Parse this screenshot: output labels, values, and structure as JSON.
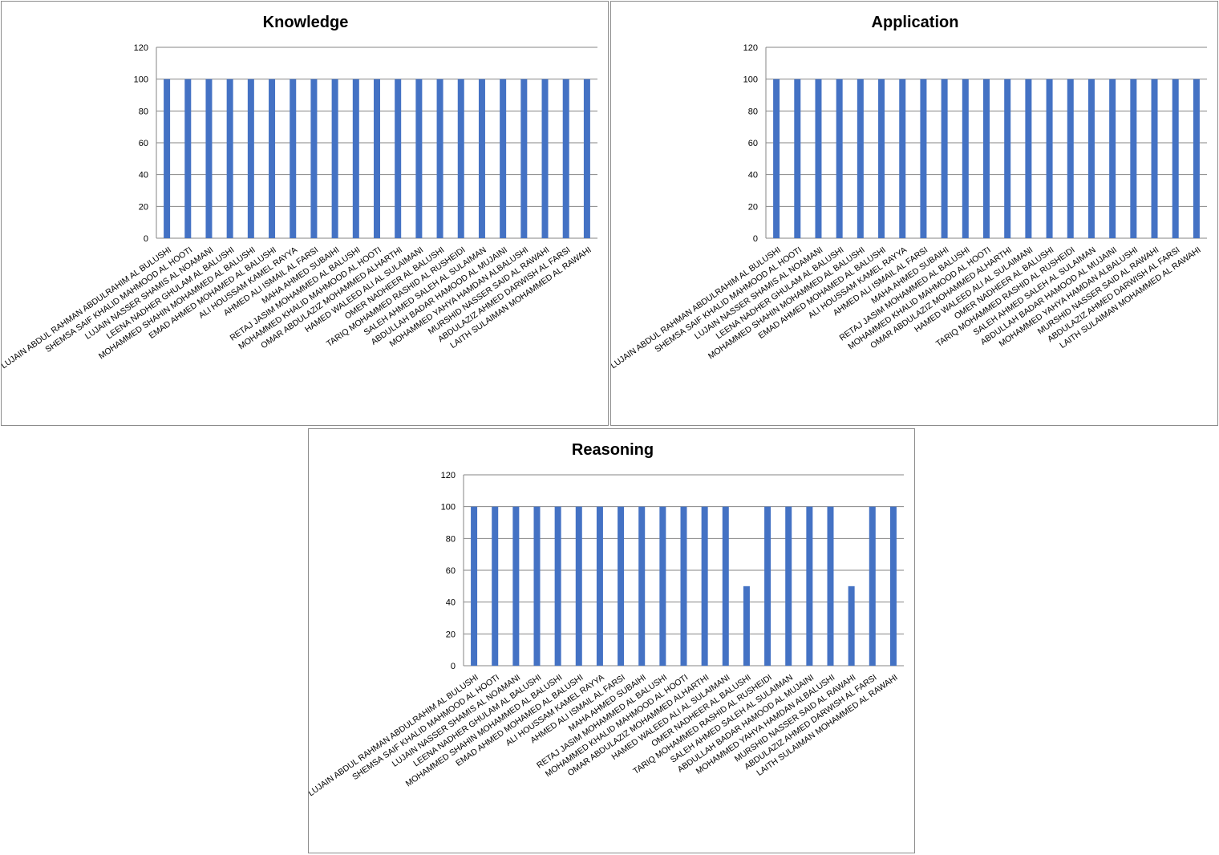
{
  "chart_data": [
    {
      "type": "bar",
      "title": "Knowledge",
      "ylim": [
        0,
        120
      ],
      "yticks": [
        0,
        20,
        40,
        60,
        80,
        100,
        120
      ],
      "grid": true,
      "color": "#4472C4",
      "categories": [
        "LUJAIN ABDUL RAHMAN ABDULRAHIM AL BULUSHI",
        "SHEMSA SAIF KHALID MAHMOOD AL HOOTI",
        "LUJAIN NASSER SHAMIS AL NOAMANI",
        "LEENA NADHER GHULAM AL BALUSHI",
        "MOHAMMED SHAHIN MOHAMMED AL BALUSHI",
        "EMAD AHMED MOHAMED AL BALUSHI",
        "ALI HOUSSAM KAMEL RAYYA",
        "AHMED ALI ISMAIL AL FARSI",
        "MAHA AHMED SUBAIHI",
        "RETAJ JASIM MOHAMMED AL BALUSHI",
        "MOHAMMED KHALID MAHMOOD AL HOOTI",
        "OMAR ABDULAZIZ MOHAMMED ALHARTHI",
        "HAMED WALEED ALI AL SULAIMANI",
        "OMER NADHEER AL BALUSHI",
        "TARIQ MOHAMMED RASHID AL RUSHEIDI",
        "SALEH AHMED SALEH AL SULAIMAN",
        "ABDULLAH BADAR HAMOOD AL MUJAINI",
        "MOHAMMED YAHYA HAMDAN ALBALUSHI",
        "MURSHID NASSER SAID AL RAWAHI",
        "ABDULAZIZ AHMED DARWISH AL FARSI",
        "LAITH SULAIMAN MOHAMMED AL RAWAHI"
      ],
      "values": [
        100,
        100,
        100,
        100,
        100,
        100,
        100,
        100,
        100,
        100,
        100,
        100,
        100,
        100,
        100,
        100,
        100,
        100,
        100,
        100,
        100
      ]
    },
    {
      "type": "bar",
      "title": "Application",
      "ylim": [
        0,
        120
      ],
      "yticks": [
        0,
        20,
        40,
        60,
        80,
        100,
        120
      ],
      "grid": true,
      "color": "#4472C4",
      "categories": [
        "LUJAIN ABDUL RAHMAN ABDULRAHIM AL BULUSHI",
        "SHEMSA SAIF KHALID MAHMOOD AL HOOTI",
        "LUJAIN NASSER SHAMIS AL NOAMANI",
        "LEENA NADHER GHULAM AL BALUSHI",
        "MOHAMMED SHAHIN MOHAMMED AL BALUSHI",
        "EMAD AHMED MOHAMED AL BALUSHI",
        "ALI HOUSSAM KAMEL RAYYA",
        "AHMED ALI ISMAIL AL FARSI",
        "MAHA AHMED SUBAIHI",
        "RETAJ JASIM MOHAMMED AL BALUSHI",
        "MOHAMMED KHALID MAHMOOD AL HOOTI",
        "OMAR ABDULAZIZ MOHAMMED ALHARTHI",
        "HAMED WALEED ALI AL SULAIMANI",
        "OMER NADHEER AL BALUSHI",
        "TARIQ MOHAMMED RASHID AL RUSHEIDI",
        "SALEH AHMED SALEH AL SULAIMAN",
        "ABDULLAH BADAR HAMOOD AL MUJAINI",
        "MOHAMMED YAHYA HAMDAN ALBALUSHI",
        "MURSHID NASSER SAID AL RAWAHI",
        "ABDULAZIZ AHMED DARWISH AL FARSI",
        "LAITH SULAIMAN MOHAMMED AL RAWAHI"
      ],
      "values": [
        100,
        100,
        100,
        100,
        100,
        100,
        100,
        100,
        100,
        100,
        100,
        100,
        100,
        100,
        100,
        100,
        100,
        100,
        100,
        100,
        100
      ]
    },
    {
      "type": "bar",
      "title": "Reasoning",
      "ylim": [
        0,
        120
      ],
      "yticks": [
        0,
        20,
        40,
        60,
        80,
        100,
        120
      ],
      "grid": true,
      "color": "#4472C4",
      "categories": [
        "LUJAIN ABDUL RAHMAN ABDULRAHIM AL BULUSHI",
        "SHEMSA SAIF KHALID MAHMOOD AL HOOTI",
        "LUJAIN NASSER SHAMIS AL NOAMANI",
        "LEENA NADHER GHULAM AL BALUSHI",
        "MOHAMMED SHAHIN MOHAMMED AL BALUSHI",
        "EMAD AHMED MOHAMED AL BALUSHI",
        "ALI HOUSSAM KAMEL RAYYA",
        "AHMED ALI ISMAIL AL FARSI",
        "MAHA AHMED SUBAIHI",
        "RETAJ JASIM MOHAMMED AL BALUSHI",
        "MOHAMMED KHALID MAHMOOD AL HOOTI",
        "OMAR ABDULAZIZ MOHAMMED ALHARTHI",
        "HAMED WALEED ALI AL SULAIMANI",
        "OMER NADHEER AL BALUSHI",
        "TARIQ MOHAMMED RASHID AL RUSHEIDI",
        "SALEH AHMED SALEH AL SULAIMAN",
        "ABDULLAH BADAR HAMOOD AL MUJAINI",
        "MOHAMMED YAHYA HAMDAN ALBALUSHI",
        "MURSHID NASSER SAID AL RAWAHI",
        "ABDULAZIZ AHMED DARWISH AL FARSI",
        "LAITH SULAIMAN MOHAMMED AL RAWAHI"
      ],
      "values": [
        100,
        100,
        100,
        100,
        100,
        100,
        100,
        100,
        100,
        100,
        100,
        100,
        100,
        50,
        100,
        100,
        100,
        100,
        50,
        100,
        100
      ]
    }
  ]
}
